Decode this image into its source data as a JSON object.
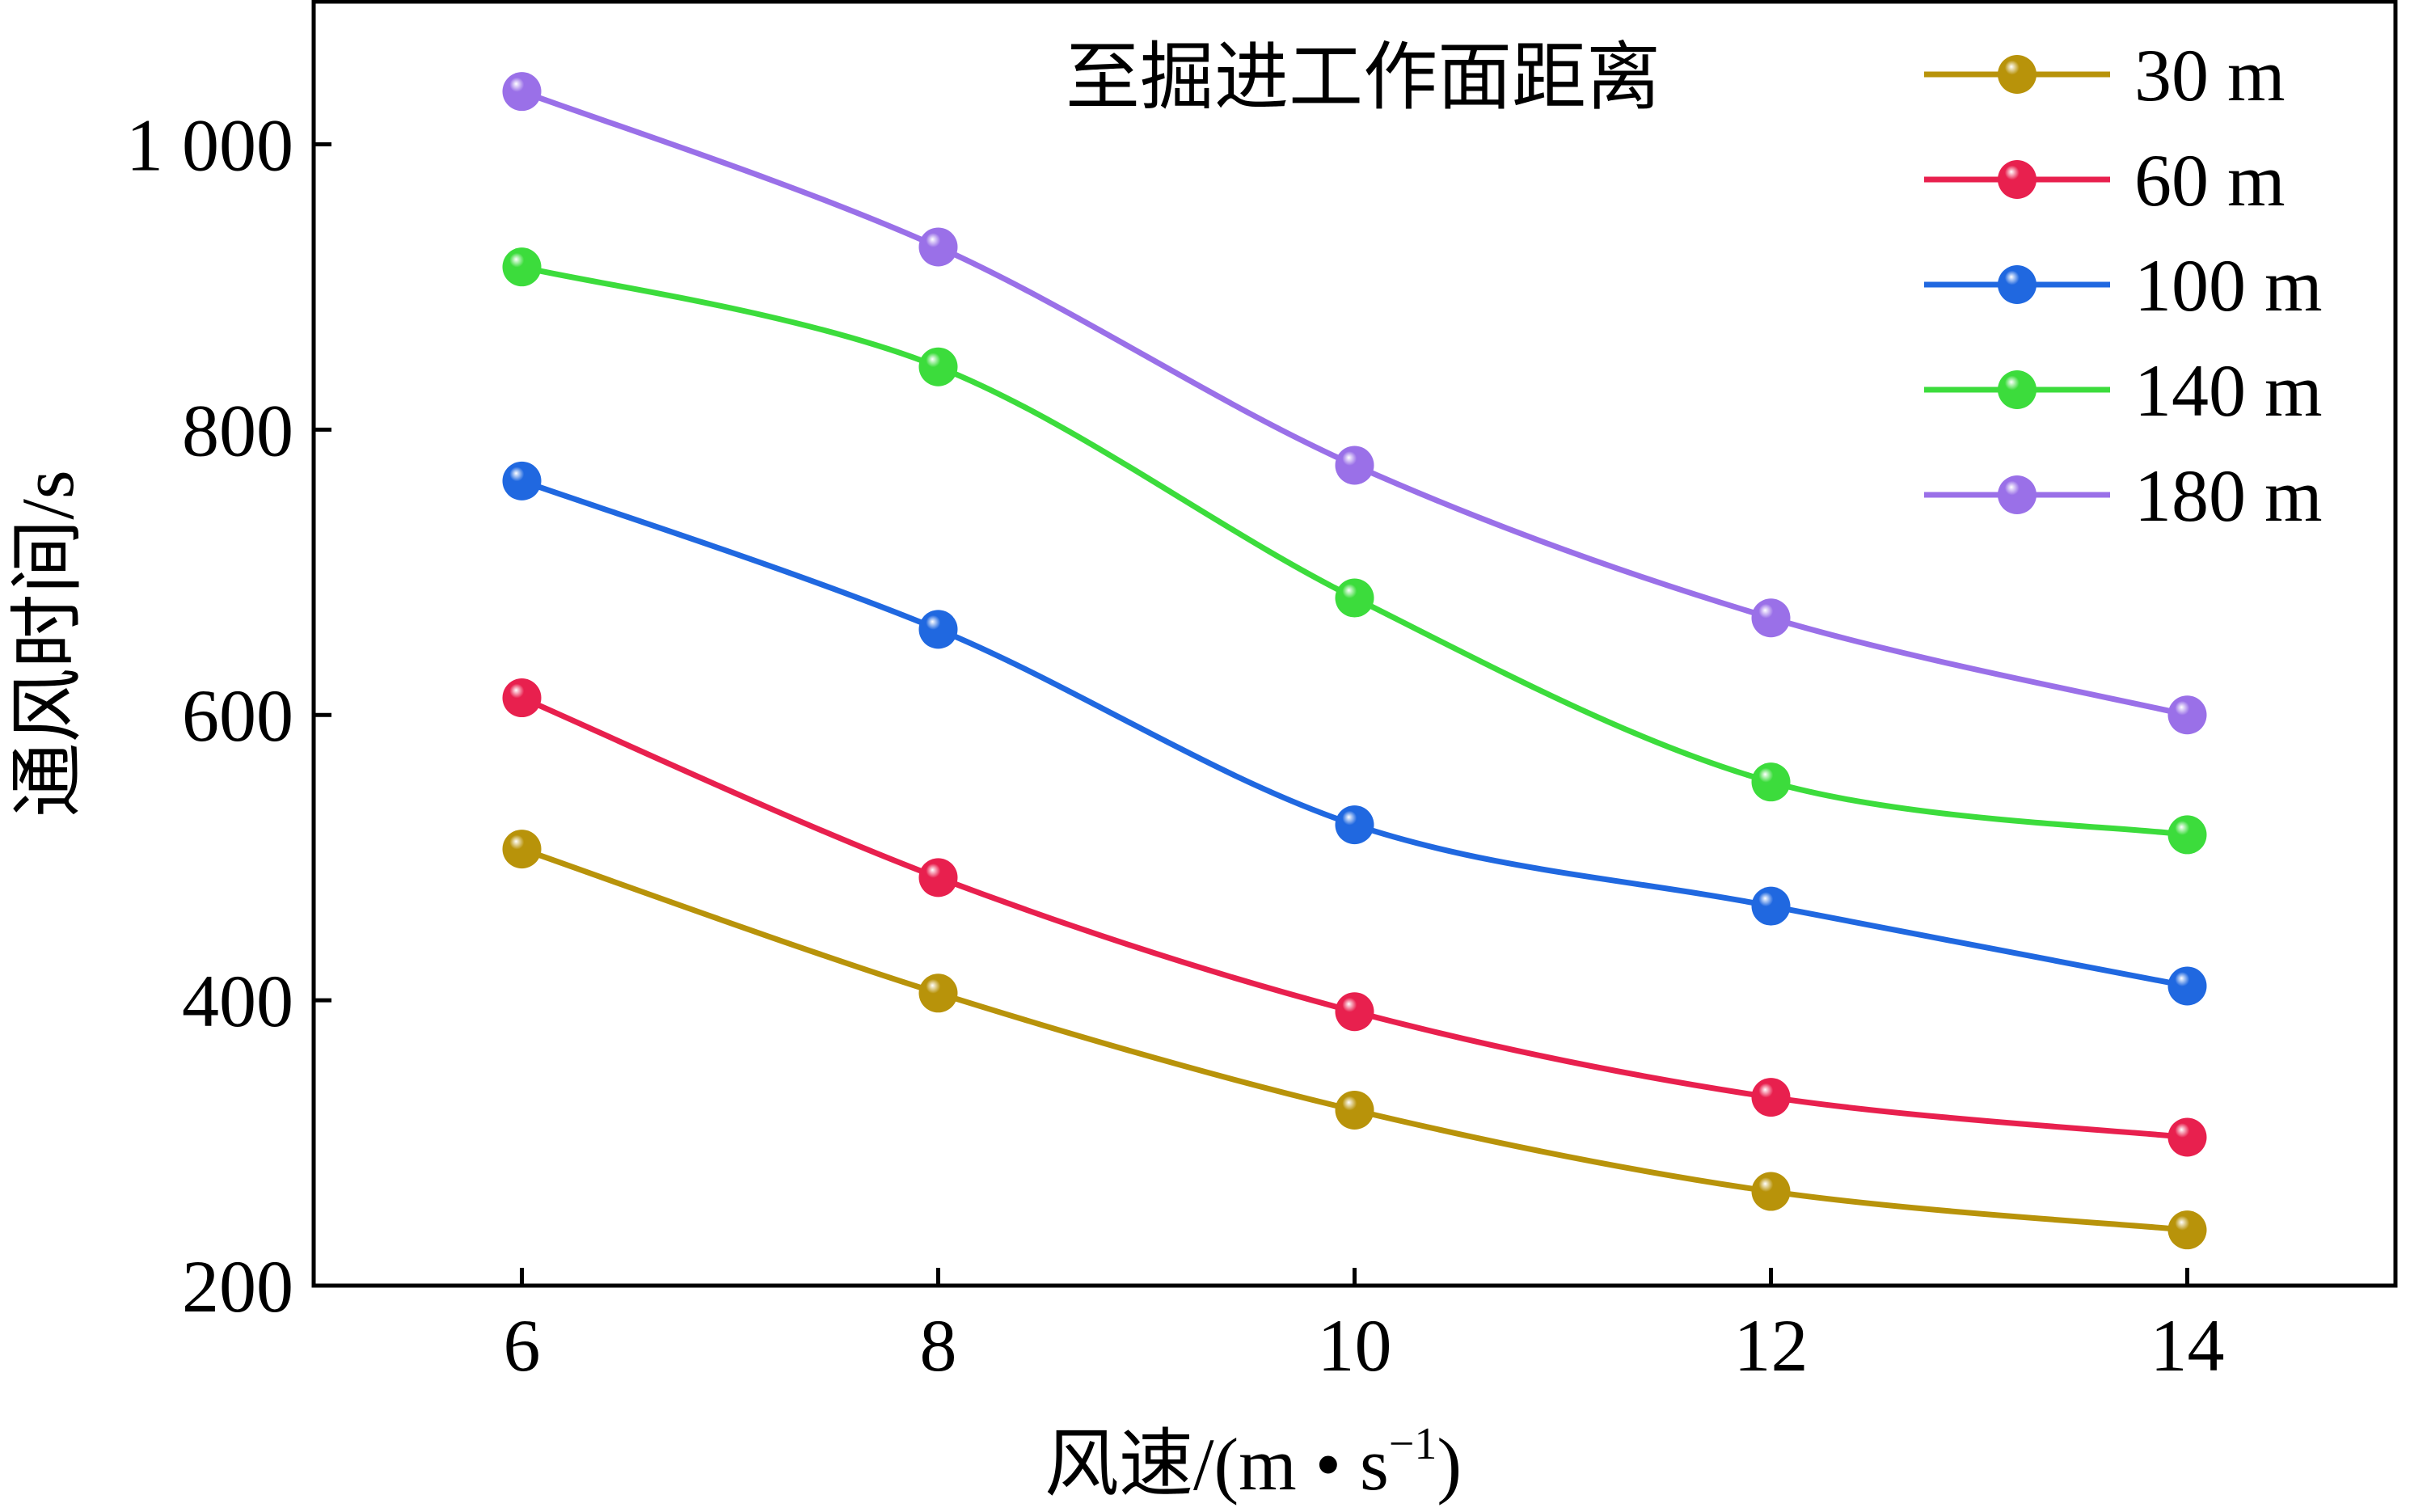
{
  "chart_data": {
    "type": "line",
    "x": [
      6,
      8,
      10,
      12,
      14
    ],
    "xticks": [
      "6",
      "8",
      "10",
      "12",
      "14"
    ],
    "yticks": [
      "200",
      "400",
      "600",
      "800",
      "1 000"
    ],
    "ytick_values": [
      200,
      400,
      600,
      800,
      1000
    ],
    "xlim": [
      5,
      15
    ],
    "ylim": [
      200,
      1100
    ],
    "xlabel": "风速/(m • s",
    "xlabel_sup": "−1",
    "xlabel_tail": ")",
    "ylabel": "通风时间/s",
    "legend_title": "至掘进工作面距离",
    "legend_position": "top-right",
    "grid": false,
    "smooth": true,
    "series": [
      {
        "name": "30 m",
        "color": "#B8930A",
        "values": [
          506,
          405,
          323,
          266,
          239
        ]
      },
      {
        "name": "60 m",
        "color": "#E8204E",
        "values": [
          612,
          486,
          392,
          332,
          304
        ]
      },
      {
        "name": "100 m",
        "color": "#2068E0",
        "values": [
          764,
          660,
          523,
          466,
          410
        ]
      },
      {
        "name": "140 m",
        "color": "#3CDC3C",
        "values": [
          914,
          844,
          682,
          553,
          516
        ]
      },
      {
        "name": "180 m",
        "color": "#9A70E8",
        "values": [
          1037,
          928,
          775,
          668,
          600
        ]
      }
    ]
  }
}
